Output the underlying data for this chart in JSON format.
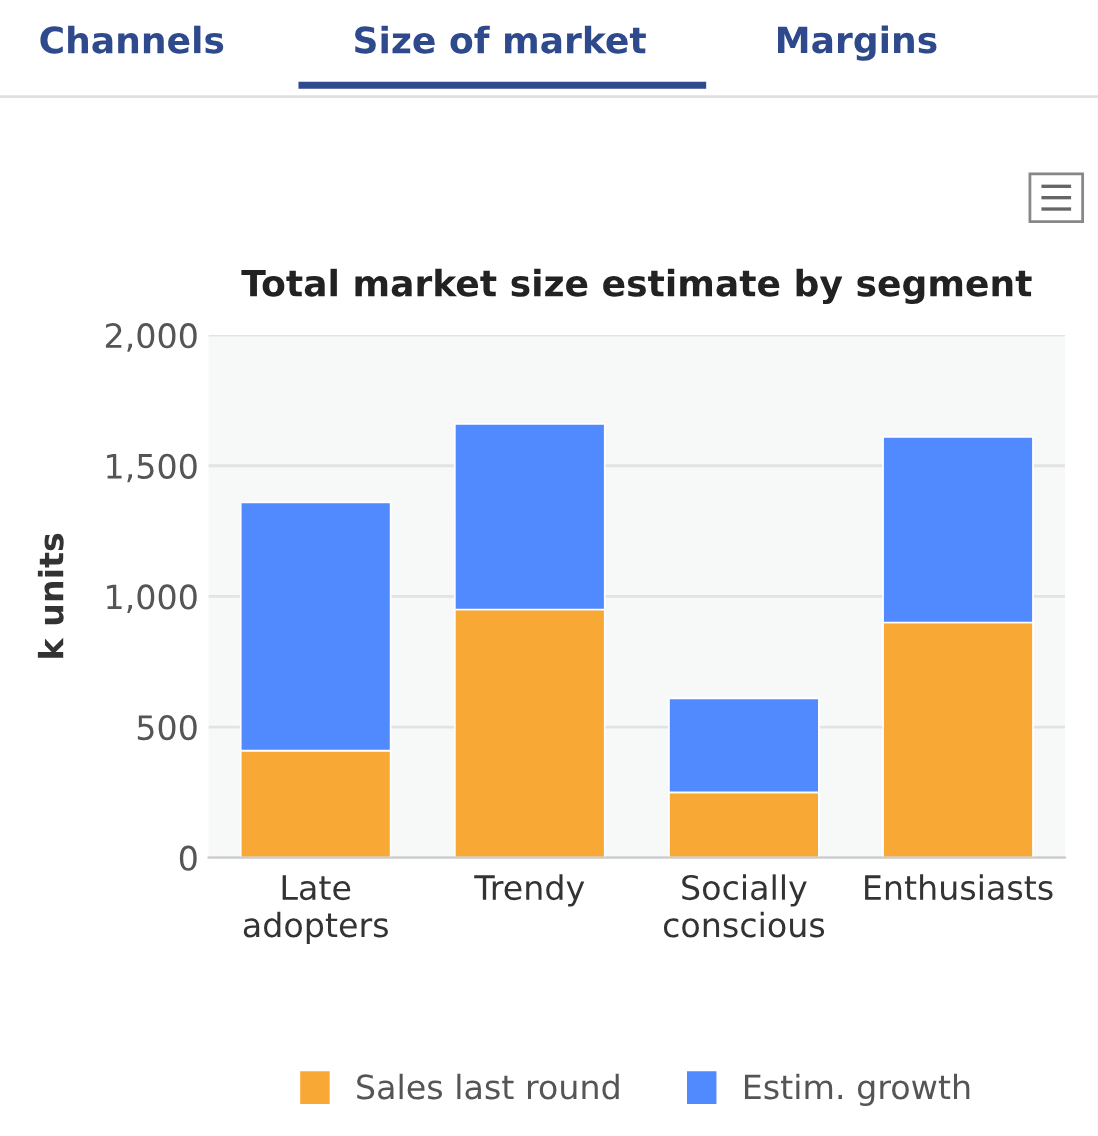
{
  "chart_data": {
    "type": "bar",
    "title": "Total market size estimate by segment",
    "ylabel": "k units",
    "categories": [
      "Late\nadopters",
      "Trendy",
      "Socially\nconscious",
      "Enthusiasts"
    ],
    "series": [
      {
        "name": "Sales last round",
        "color": "#f8a834",
        "values": [
          410,
          950,
          250,
          900
        ]
      },
      {
        "name": "Estim. growth",
        "color": "#518afe",
        "values": [
          950,
          710,
          360,
          710
        ]
      }
    ],
    "stacked": true,
    "ylim": [
      0,
      2000
    ],
    "yticks": [
      {
        "value": 0,
        "label": "0"
      },
      {
        "value": 500,
        "label": "500"
      },
      {
        "value": 1000,
        "label": "1,000"
      },
      {
        "value": 1500,
        "label": "1,500"
      },
      {
        "value": 2000,
        "label": "2,000"
      }
    ],
    "grid": "y",
    "legend": "bottom",
    "annotations": [
      "Channels",
      "Size of market",
      "Margins"
    ]
  }
}
